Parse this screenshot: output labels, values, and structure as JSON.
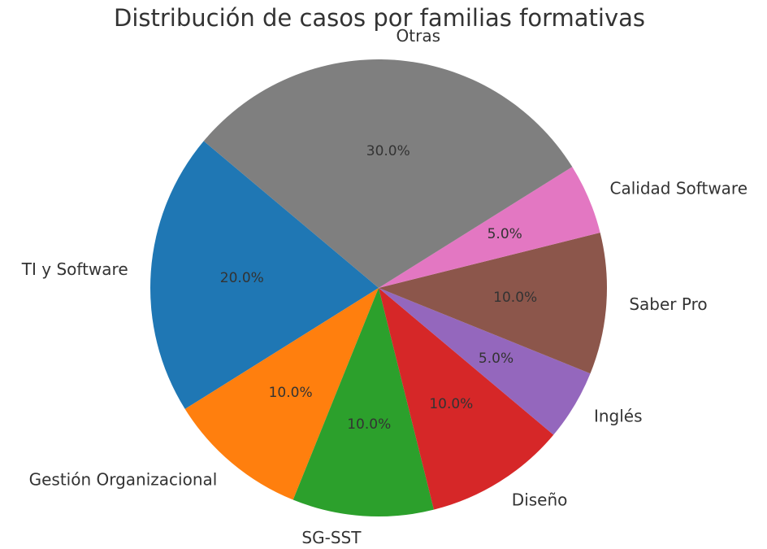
{
  "chart_data": {
    "type": "pie",
    "title": "Distribución de casos por familias formativas",
    "categories": [
      "TI y Software",
      "Gestión Organizacional",
      "SG-SST",
      "Diseño",
      "Inglés",
      "Saber Pro",
      "Calidad Software",
      "Otras"
    ],
    "values": [
      20,
      10,
      10,
      10,
      5,
      10,
      5,
      30
    ],
    "value_labels": [
      "20.0%",
      "10.0%",
      "10.0%",
      "10.0%",
      "5.0%",
      "10.0%",
      "5.0%",
      "30.0%"
    ],
    "colors": [
      "#1f77b4",
      "#ff7f0e",
      "#2ca02c",
      "#d62728",
      "#9467bd",
      "#8c564b",
      "#e377c2",
      "#7f7f7f"
    ]
  }
}
